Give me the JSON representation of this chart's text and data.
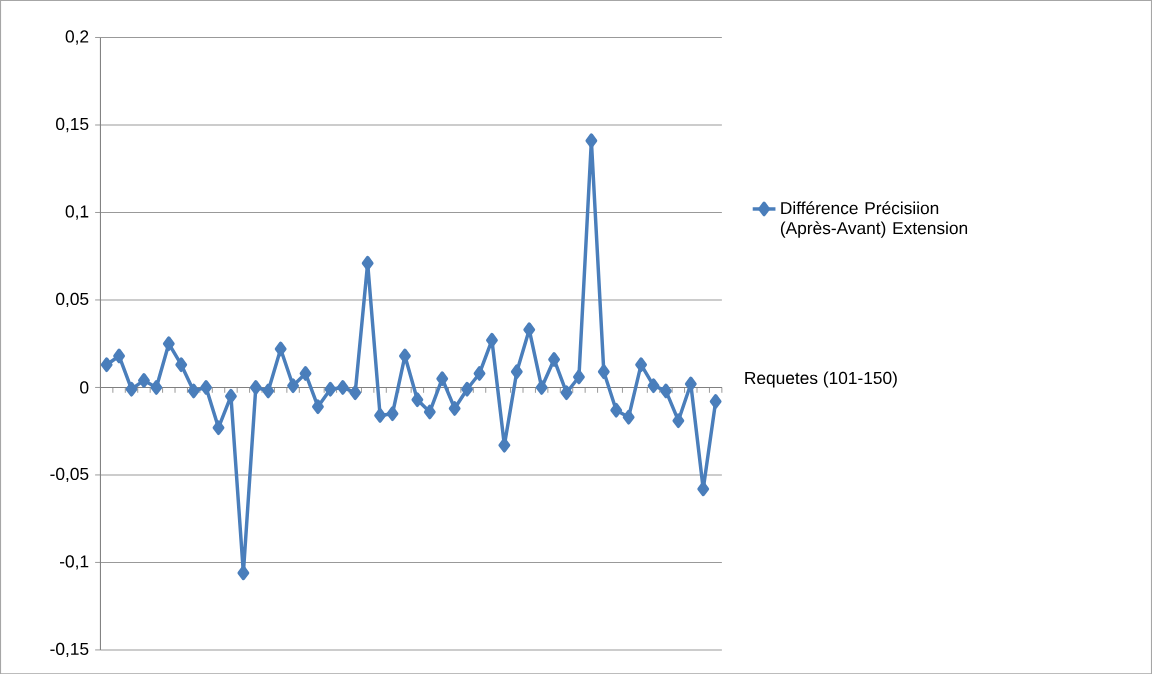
{
  "chart_data": {
    "type": "line",
    "xlabel": "Requetes (101-150)",
    "categories": [
      null,
      null,
      null,
      null,
      null,
      null,
      null,
      null,
      null,
      null,
      null,
      null,
      null,
      null,
      null,
      null,
      null,
      null,
      null,
      null,
      null,
      null,
      null,
      null,
      null,
      null,
      null,
      null,
      null,
      null,
      null,
      null,
      null,
      null,
      null,
      null,
      null,
      null,
      null,
      null,
      null,
      null,
      null,
      null,
      null,
      null,
      null,
      null,
      null,
      null
    ],
    "series": [
      {
        "name": "Différence Précisiion (Après-Avant) Extension",
        "color": "#4a7ebb",
        "values": [
          0.013,
          0.018,
          -0.001,
          0.004,
          0,
          0.025,
          0.013,
          -0.002,
          0,
          -0.023,
          -0.005,
          -0.106,
          0,
          -0.002,
          0.022,
          0.001,
          0.008,
          -0.011,
          -0.001,
          0,
          -0.003,
          0.071,
          -0.016,
          -0.015,
          0.018,
          -0.007,
          -0.014,
          0.005,
          -0.012,
          -0.001,
          0.008,
          0.027,
          -0.033,
          0.009,
          0.033,
          0,
          0.016,
          -0.003,
          0.006,
          0.141,
          0.009,
          -0.013,
          -0.017,
          0.013,
          0.001,
          -0.002,
          -0.019,
          0.002,
          -0.058,
          -0.008
        ]
      }
    ],
    "ylim": [
      -0.15,
      0.2
    ],
    "yticks": [
      {
        "value": -0.15,
        "label": "-0,15"
      },
      {
        "value": -0.1,
        "label": "-0,1"
      },
      {
        "value": -0.05,
        "label": "-0,05"
      },
      {
        "value": 0,
        "label": "0"
      },
      {
        "value": 0.05,
        "label": "0,05"
      },
      {
        "value": 0.1,
        "label": "0,1"
      },
      {
        "value": 0.15,
        "label": "0,15"
      },
      {
        "value": 0.2,
        "label": "0,2"
      }
    ],
    "grid": "y",
    "legend": "right",
    "marker": "diamond",
    "line_style": "solid",
    "tick_labels": "y"
  }
}
